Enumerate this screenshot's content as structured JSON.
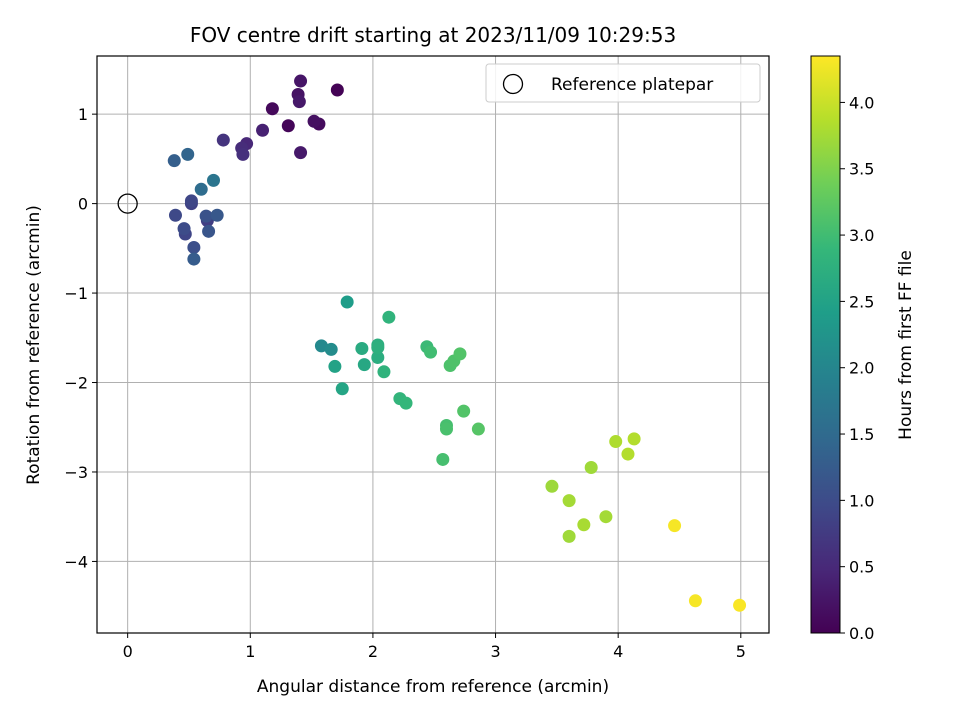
{
  "chart_data": {
    "type": "scatter",
    "title": "FOV centre drift starting at 2023/11/09 10:29:53",
    "xlabel": "Angular distance from reference (arcmin)",
    "ylabel": "Rotation from reference (arcmin)",
    "xlim": [
      -0.25,
      5.23
    ],
    "ylim": [
      -4.8,
      1.65
    ],
    "x_ticks": [
      0,
      1,
      2,
      3,
      4,
      5
    ],
    "x_tick_labels": [
      "0",
      "1",
      "2",
      "3",
      "4",
      "5"
    ],
    "y_ticks": [
      1,
      0,
      -1,
      -2,
      -3,
      -4
    ],
    "y_tick_labels": [
      "1",
      "0",
      "−1",
      "−2",
      "−3",
      "−4"
    ],
    "grid": true,
    "legend": {
      "placement": "top-right",
      "entries": [
        {
          "label": "Reference platepar",
          "marker": "open-circle"
        }
      ]
    },
    "reference_point": {
      "x": 0,
      "y": 0
    },
    "colorbar": {
      "label": "Hours from first FF file",
      "colormap": "viridis",
      "range": [
        0.0,
        4.35
      ],
      "ticks": [
        0.0,
        0.5,
        1.0,
        1.5,
        2.0,
        2.5,
        3.0,
        3.5,
        4.0
      ],
      "tick_labels": [
        "0.0",
        "0.5",
        "1.0",
        "1.5",
        "2.0",
        "2.5",
        "3.0",
        "3.5",
        "4.0"
      ]
    },
    "points": [
      {
        "x": 1.71,
        "y": 1.27,
        "c": 0.02
      },
      {
        "x": 1.31,
        "y": 0.87,
        "c": 0.05
      },
      {
        "x": 1.18,
        "y": 1.06,
        "c": 0.1
      },
      {
        "x": 1.56,
        "y": 0.89,
        "c": 0.12
      },
      {
        "x": 1.52,
        "y": 0.92,
        "c": 0.18
      },
      {
        "x": 1.39,
        "y": 1.22,
        "c": 0.22
      },
      {
        "x": 1.41,
        "y": 1.37,
        "c": 0.25
      },
      {
        "x": 1.4,
        "y": 1.14,
        "c": 0.28
      },
      {
        "x": 1.41,
        "y": 0.57,
        "c": 0.3
      },
      {
        "x": 1.1,
        "y": 0.82,
        "c": 0.4
      },
      {
        "x": 0.97,
        "y": 0.67,
        "c": 0.48
      },
      {
        "x": 0.93,
        "y": 0.62,
        "c": 0.55
      },
      {
        "x": 0.94,
        "y": 0.55,
        "c": 0.6
      },
      {
        "x": 0.78,
        "y": 0.71,
        "c": 0.65
      },
      {
        "x": 0.65,
        "y": -0.19,
        "c": 0.8
      },
      {
        "x": 0.52,
        "y": 0.0,
        "c": 0.85
      },
      {
        "x": 0.47,
        "y": -0.34,
        "c": 0.9
      },
      {
        "x": 0.52,
        "y": 0.03,
        "c": 0.92
      },
      {
        "x": 0.39,
        "y": -0.13,
        "c": 0.95
      },
      {
        "x": 0.46,
        "y": -0.28,
        "c": 1.0
      },
      {
        "x": 0.54,
        "y": -0.49,
        "c": 1.05
      },
      {
        "x": 0.64,
        "y": -0.14,
        "c": 1.1
      },
      {
        "x": 0.66,
        "y": -0.31,
        "c": 1.15
      },
      {
        "x": 0.73,
        "y": -0.13,
        "c": 1.2
      },
      {
        "x": 0.54,
        "y": -0.62,
        "c": 1.25
      },
      {
        "x": 0.38,
        "y": 0.48,
        "c": 1.3
      },
      {
        "x": 0.49,
        "y": 0.55,
        "c": 1.4
      },
      {
        "x": 0.6,
        "y": 0.16,
        "c": 1.55
      },
      {
        "x": 0.7,
        "y": 0.26,
        "c": 1.7
      },
      {
        "x": 1.58,
        "y": -1.59,
        "c": 2.05
      },
      {
        "x": 1.66,
        "y": -1.63,
        "c": 2.1
      },
      {
        "x": 1.79,
        "y": -1.1,
        "c": 2.4
      },
      {
        "x": 1.69,
        "y": -1.82,
        "c": 2.5
      },
      {
        "x": 1.75,
        "y": -2.07,
        "c": 2.55
      },
      {
        "x": 1.93,
        "y": -1.8,
        "c": 2.6
      },
      {
        "x": 1.91,
        "y": -1.62,
        "c": 2.65
      },
      {
        "x": 2.04,
        "y": -1.72,
        "c": 2.7
      },
      {
        "x": 2.04,
        "y": -1.58,
        "c": 2.72
      },
      {
        "x": 2.04,
        "y": -1.61,
        "c": 2.75
      },
      {
        "x": 2.09,
        "y": -1.88,
        "c": 2.8
      },
      {
        "x": 2.13,
        "y": -1.27,
        "c": 2.82
      },
      {
        "x": 2.22,
        "y": -2.18,
        "c": 2.85
      },
      {
        "x": 2.27,
        "y": -2.23,
        "c": 2.88
      },
      {
        "x": 2.44,
        "y": -1.6,
        "c": 2.95
      },
      {
        "x": 2.47,
        "y": -1.66,
        "c": 3.0
      },
      {
        "x": 2.57,
        "y": -2.86,
        "c": 3.05
      },
      {
        "x": 2.6,
        "y": -2.48,
        "c": 3.05
      },
      {
        "x": 2.6,
        "y": -2.52,
        "c": 3.08
      },
      {
        "x": 2.63,
        "y": -1.81,
        "c": 3.1
      },
      {
        "x": 2.66,
        "y": -1.76,
        "c": 3.12
      },
      {
        "x": 2.71,
        "y": -1.68,
        "c": 3.15
      },
      {
        "x": 2.74,
        "y": -2.32,
        "c": 3.15
      },
      {
        "x": 2.86,
        "y": -2.52,
        "c": 3.18
      },
      {
        "x": 3.46,
        "y": -3.16,
        "c": 3.7
      },
      {
        "x": 3.6,
        "y": -3.32,
        "c": 3.75
      },
      {
        "x": 3.6,
        "y": -3.72,
        "c": 3.72
      },
      {
        "x": 3.72,
        "y": -3.59,
        "c": 3.78
      },
      {
        "x": 3.78,
        "y": -2.95,
        "c": 3.72
      },
      {
        "x": 3.9,
        "y": -3.5,
        "c": 3.75
      },
      {
        "x": 3.98,
        "y": -2.66,
        "c": 3.82
      },
      {
        "x": 4.08,
        "y": -2.8,
        "c": 3.85
      },
      {
        "x": 4.13,
        "y": -2.63,
        "c": 3.85
      },
      {
        "x": 4.46,
        "y": -3.6,
        "c": 4.3
      },
      {
        "x": 4.63,
        "y": -4.44,
        "c": 4.3
      },
      {
        "x": 4.99,
        "y": -4.49,
        "c": 4.32
      }
    ]
  }
}
